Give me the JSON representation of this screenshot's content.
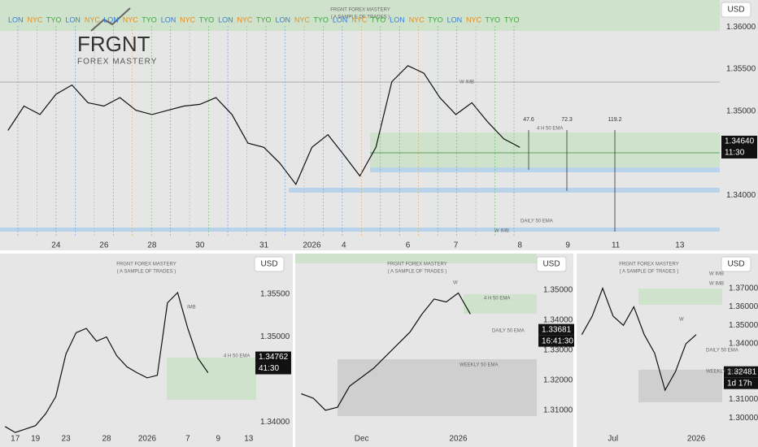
{
  "chart_data": [
    {
      "type": "line",
      "title": "FRGNT FOREX MASTERY",
      "subtitle": "( A SAMPLE OF TRADES )",
      "currency": "USD",
      "logo": {
        "name": "FRGNT",
        "tagline": "FOREX MASTERY"
      },
      "sessions": [
        "LON",
        "NYC",
        "TYO",
        "LON",
        "NYC",
        "LON",
        "NYC",
        "TYO",
        "LON",
        "NYC",
        "TYO",
        "LON",
        "NYC",
        "TYO",
        "LON",
        "NYC",
        "TYO",
        "LON",
        "NYC",
        "TYO",
        "LON",
        "NYC",
        "TYO",
        "LON",
        "NYC",
        "TYO",
        "TYO"
      ],
      "categories": [
        null,
        null,
        null,
        "24",
        null,
        null,
        "26",
        null,
        null,
        "28",
        null,
        null,
        "30",
        null,
        null,
        null,
        "31",
        null,
        null,
        "2026",
        null,
        "4",
        null,
        null,
        null,
        "6",
        null,
        null,
        "7",
        null,
        null,
        null,
        "8",
        null,
        null,
        "9",
        null,
        null,
        "11",
        null,
        null,
        null,
        "13",
        null,
        null
      ],
      "series": [
        {
          "color": "#111111",
          "values": [
            1.3477,
            1.3506,
            1.3496,
            1.352,
            1.3531,
            1.351,
            1.3506,
            1.3516,
            1.3501,
            1.3496,
            1.3501,
            1.3506,
            1.3508,
            1.3516,
            1.3496,
            1.3462,
            1.3457,
            1.3438,
            1.3413,
            1.3457,
            1.3472,
            1.3448,
            1.3423,
            1.3457,
            1.3535,
            1.3554,
            1.3545,
            1.3516,
            1.3496,
            1.351,
            1.3487,
            1.3467,
            1.3457,
            null,
            null,
            null,
            null,
            null,
            null,
            null,
            null,
            null,
            null,
            null,
            null
          ]
        }
      ],
      "ylim": [
        1.3352,
        1.3632
      ],
      "yticks": [
        {
          "value": 1.34,
          "label": "1.34000"
        },
        {
          "value": 1.345,
          "label": "1.34500"
        },
        {
          "value": 1.35,
          "label": "1.35000"
        },
        {
          "value": 1.355,
          "label": "1.35500"
        },
        {
          "value": 1.36,
          "label": "1.36000"
        }
      ],
      "price_tag": {
        "value": 1.3464,
        "label": "1.34640"
      },
      "countdown": "11:30",
      "annotations": [
        "W IMB",
        "4 H 50 EMA",
        "DAILY 50 EMA",
        "W IMB"
      ],
      "measurements": [
        47.6,
        72.3,
        119.2
      ]
    },
    {
      "type": "line",
      "title": "FRGNT FOREX MASTERY",
      "subtitle": "( A SAMPLE OF TRADES )",
      "currency": "USD",
      "categories": [
        null,
        "17",
        null,
        "19",
        null,
        null,
        "23",
        null,
        null,
        null,
        "28",
        null,
        null,
        null,
        "2026",
        null,
        null,
        null,
        "7",
        null,
        null,
        "9",
        null,
        null,
        "13"
      ],
      "series": [
        {
          "color": "#111111",
          "values": [
            1.3395,
            1.3388,
            1.3392,
            1.3396,
            1.341,
            1.343,
            1.348,
            1.3505,
            1.351,
            1.3495,
            1.35,
            1.3478,
            1.3465,
            1.3458,
            1.3452,
            1.3455,
            1.354,
            1.3552,
            1.351,
            1.3475,
            1.3458,
            null,
            null,
            null,
            null
          ]
        }
      ],
      "ylim": [
        1.339,
        1.3592
      ],
      "yticks": [
        {
          "value": 1.34,
          "label": "1.34000"
        },
        {
          "value": 1.35,
          "label": "1.35000"
        },
        {
          "value": 1.355,
          "label": "1.35500"
        }
      ],
      "price_tag": {
        "value": 1.34762,
        "label": "1.34762"
      },
      "countdown": "41:30",
      "annotations": [
        "IMB",
        "4 H 50 EMA"
      ]
    },
    {
      "type": "line",
      "title": "FRGNT FOREX MASTERY",
      "subtitle": "( A SAMPLE OF TRADES )",
      "currency": "USD",
      "categories": [
        null,
        null,
        null,
        null,
        null,
        "Dec",
        null,
        null,
        null,
        null,
        null,
        null,
        null,
        "2026",
        null,
        null,
        null,
        null,
        null,
        null
      ],
      "series": [
        {
          "color": "#111111",
          "values": [
            1.3155,
            1.314,
            1.31,
            1.311,
            1.318,
            1.321,
            1.324,
            1.328,
            1.332,
            1.336,
            1.342,
            1.347,
            1.346,
            1.349,
            1.342,
            null,
            null,
            null,
            null,
            null
          ]
        }
      ],
      "ylim": [
        1.3032,
        1.3605
      ],
      "yticks": [
        {
          "value": 1.31,
          "label": "1.31000"
        },
        {
          "value": 1.32,
          "label": "1.32000"
        },
        {
          "value": 1.33,
          "label": "1.33000"
        },
        {
          "value": 1.34,
          "label": "1.34000"
        },
        {
          "value": 1.35,
          "label": "1.35000"
        }
      ],
      "price_tag": {
        "value": 1.33681,
        "label": "1.33681"
      },
      "countdown": "16:41:30",
      "annotations": [
        "W",
        "4 H 50 EMA",
        "DAILY 50 EMA",
        "WEEKLY 50 EMA"
      ]
    },
    {
      "type": "line",
      "title": "FRGNT FOREX MASTERY",
      "subtitle": "( A SAMPLE OF TRADES )",
      "currency": "USD",
      "categories": [
        null,
        null,
        null,
        "Jul",
        null,
        null,
        null,
        null,
        null,
        null,
        null,
        "2026",
        null,
        null
      ],
      "series": [
        {
          "color": "#111111",
          "values": [
            1.345,
            1.355,
            1.37,
            1.355,
            1.35,
            1.36,
            1.345,
            1.335,
            1.315,
            1.325,
            1.34,
            1.345,
            null,
            null
          ]
        }
      ],
      "ylim": [
        1.2887,
        1.3861
      ],
      "yticks": [
        {
          "value": 1.3,
          "label": "1.30000"
        },
        {
          "value": 1.31,
          "label": "1.31000"
        },
        {
          "value": 1.34,
          "label": "1.34000"
        },
        {
          "value": 1.35,
          "label": "1.35000"
        },
        {
          "value": 1.36,
          "label": "1.36000"
        },
        {
          "value": 1.37,
          "label": "1.37000"
        }
      ],
      "price_tag": {
        "value": 1.32481,
        "label": "1.32481"
      },
      "countdown": "1d 17h",
      "annotations": [
        "W IMB",
        "W IMB",
        "W",
        "DAILY 50 EMA",
        "WEEKLY 50 EMA"
      ]
    }
  ]
}
